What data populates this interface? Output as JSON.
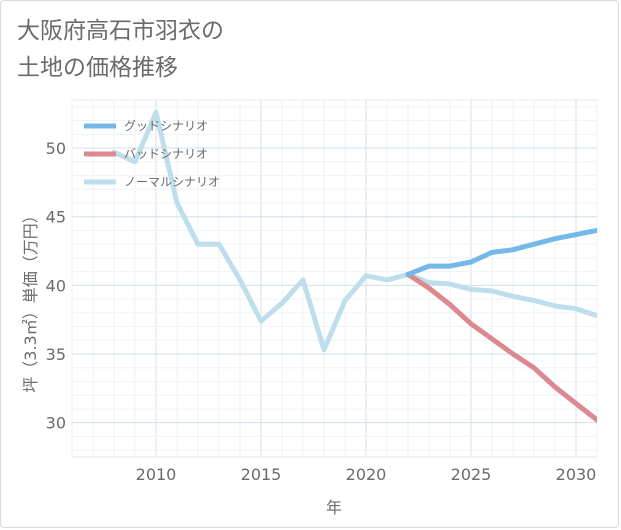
{
  "title_line1": "大阪府高石市羽衣の",
  "title_line2": "土地の価格推移",
  "chart_data": {
    "type": "line",
    "title": "大阪府高石市羽衣の土地の価格推移",
    "xlabel": "年",
    "ylabel": "坪（3.3㎡）単価（万円）",
    "xlim": [
      2006,
      2031
    ],
    "ylim": [
      27.5,
      53.5
    ],
    "xticks": [
      2010,
      2015,
      2020,
      2025,
      2030
    ],
    "yticks": [
      30,
      35,
      40,
      45,
      50
    ],
    "grid": true,
    "legend_position": "top-left",
    "series": [
      {
        "name": "グッドシナリオ",
        "color": "#75b8e8",
        "x": [
          2022,
          2023,
          2024,
          2025,
          2026,
          2027,
          2028,
          2029,
          2030,
          2031
        ],
        "y": [
          40.8,
          41.4,
          41.4,
          41.7,
          42.4,
          42.6,
          43.0,
          43.4,
          43.7,
          44.0
        ]
      },
      {
        "name": "バッドシナリオ",
        "color": "#dc8890",
        "x": [
          2022,
          2023,
          2024,
          2025,
          2026,
          2027,
          2028,
          2029,
          2030,
          2031
        ],
        "y": [
          40.8,
          39.8,
          38.6,
          37.2,
          36.1,
          35.0,
          34.0,
          32.6,
          31.4,
          30.2
        ]
      },
      {
        "name": "ノーマルシナリオ",
        "color": "#bedeec",
        "x": [
          2008,
          2009,
          2010,
          2011,
          2012,
          2013,
          2014,
          2015,
          2016,
          2017,
          2018,
          2019,
          2020,
          2021,
          2022,
          2023,
          2024,
          2025,
          2026,
          2027,
          2028,
          2029,
          2030,
          2031
        ],
        "y": [
          49.7,
          49.0,
          52.6,
          46.0,
          43.0,
          43.0,
          40.4,
          37.4,
          38.7,
          40.4,
          35.3,
          38.9,
          40.7,
          40.4,
          40.8,
          40.2,
          40.1,
          39.7,
          39.6,
          39.2,
          38.9,
          38.5,
          38.3,
          37.8
        ]
      }
    ]
  }
}
